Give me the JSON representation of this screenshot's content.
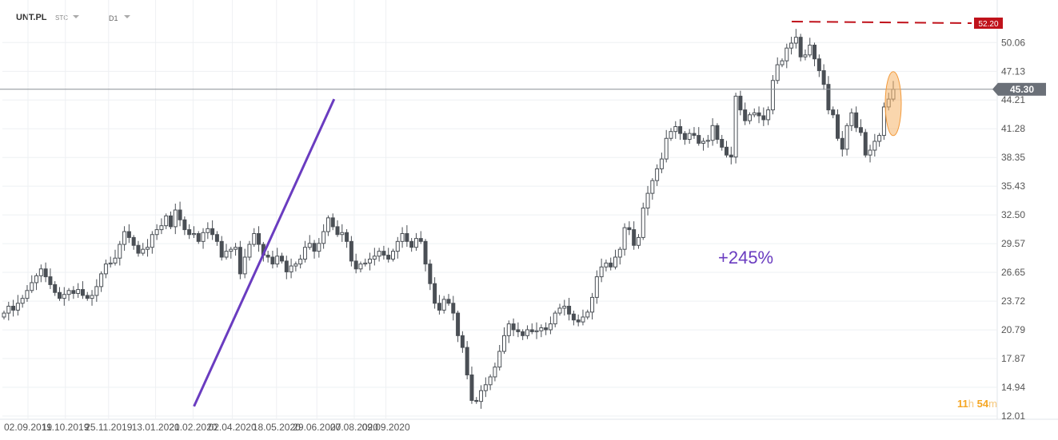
{
  "toolbar": {
    "symbol": "UNT.PL",
    "type": "STC",
    "timeframe": "D1"
  },
  "countdown": {
    "hours": "11",
    "h_unit": "h",
    "minutes": "54",
    "m_unit": "m"
  },
  "colors": {
    "candle": "#4a4f55",
    "trendline": "#6a3cc0",
    "resistance": "#c0121b",
    "highlight": "#f6b46a",
    "price_line": "#8a8f96"
  },
  "chart_data": {
    "type": "candlestick",
    "symbol": "UNT.PL",
    "timeframe": "D1",
    "ylim": [
      12.01,
      52.2
    ],
    "y_ticks": [
      "50.06",
      "47.13",
      "44.21",
      "41.28",
      "38.35",
      "35.43",
      "32.50",
      "29.57",
      "26.65",
      "23.72",
      "20.79",
      "17.87",
      "14.94",
      "12.01"
    ],
    "x_ticks": [
      "02.09.2019",
      "11.10.2019",
      "25.11.2019",
      "13.01.2020",
      "21.02.2020",
      "02.04.2020",
      "18.05.2020",
      "29.06.2020",
      "07.08.2020",
      "09.09.2020"
    ],
    "current_price": "45.30",
    "resistance_level": "52.20",
    "annotation": "+245%",
    "trendline": {
      "from": [
        "2020-03-18",
        13.0
      ],
      "to": [
        "2020-08-11",
        44.3
      ]
    },
    "closes": [
      22.5,
      23.2,
      22.8,
      23.5,
      24.0,
      24.8,
      25.6,
      26.3,
      27.0,
      26.2,
      25.4,
      24.6,
      24.0,
      24.4,
      24.8,
      24.5,
      24.9,
      24.3,
      24.0,
      24.3,
      25.2,
      26.5,
      27.5,
      27.6,
      28.1,
      29.5,
      30.8,
      30.2,
      29.4,
      28.6,
      29.0,
      29.2,
      30.5,
      31.0,
      31.4,
      32.4,
      31.3,
      33.0,
      32.0,
      31.0,
      30.5,
      30.6,
      29.8,
      30.7,
      31.1,
      30.5,
      29.8,
      28.2,
      28.8,
      29.0,
      29.2,
      26.5,
      28.2,
      29.5,
      30.6,
      29.5,
      28.4,
      28.2,
      27.5,
      28.3,
      27.8,
      26.7,
      27.3,
      27.5,
      28.0,
      29.2,
      29.6,
      28.8,
      29.6,
      30.8,
      32.2,
      31.3,
      30.5,
      30.7,
      29.8,
      27.8,
      27.0,
      27.5,
      27.6,
      28.0,
      28.3,
      28.8,
      28.4,
      28.0,
      28.8,
      29.8,
      30.6,
      29.8,
      29.2,
      30.1,
      29.8,
      27.5,
      25.5,
      23.5,
      22.8,
      23.9,
      23.5,
      22.5,
      20.2,
      19.0,
      16.2,
      13.6,
      13.5,
      14.6,
      15.2,
      16.0,
      17.0,
      18.6,
      20.2,
      21.4,
      20.8,
      20.6,
      20.2,
      20.8,
      20.6,
      20.7,
      21.0,
      20.8,
      21.4,
      22.5,
      23.0,
      23.2,
      22.4,
      21.8,
      21.6,
      22.1,
      22.6,
      24.1,
      26.2,
      27.2,
      27.6,
      27.2,
      28.2,
      29.0,
      31.2,
      31.0,
      29.4,
      30.2,
      33.2,
      34.7,
      36.0,
      37.2,
      38.2,
      40.3,
      41.0,
      41.5,
      40.8,
      40.2,
      40.8,
      40.6,
      39.8,
      40.0,
      40.1,
      41.6,
      40.2,
      39.4,
      38.6,
      38.4,
      44.6,
      43.2,
      42.1,
      42.7,
      42.9,
      42.6,
      42.2,
      43.2,
      46.2,
      47.8,
      48.2,
      49.5,
      50.0,
      50.6,
      48.6,
      48.8,
      49.8,
      48.4,
      47.2,
      45.8,
      43.2,
      42.7,
      40.3,
      39.2,
      41.6,
      42.9,
      41.4,
      40.9,
      38.6,
      39.1,
      40.0,
      40.6,
      43.5,
      44.3,
      45.3
    ]
  }
}
